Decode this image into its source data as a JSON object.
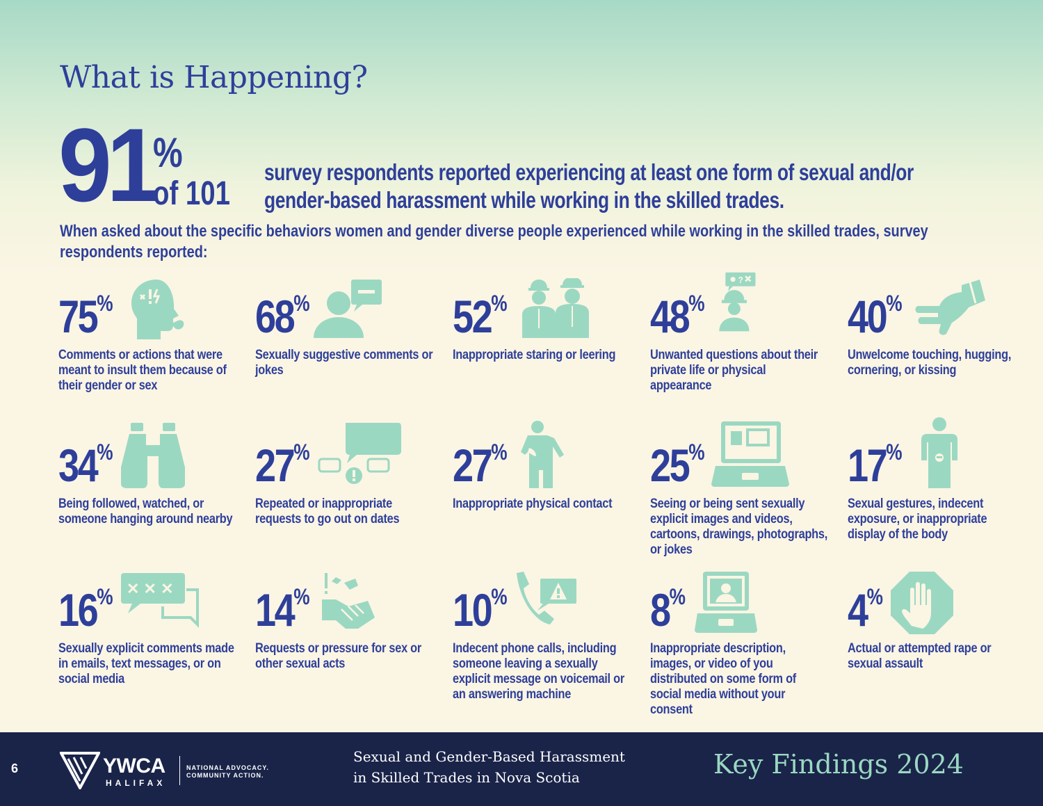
{
  "title": "What is Happening?",
  "headline": {
    "big_value": "91",
    "percent_sign": "%",
    "of_total": "of 101",
    "text": "survey respondents reported experiencing at least one form of sexual and/or gender-based harassment while working in the skilled trades."
  },
  "intro": "When asked about the specific behaviors women and gender diverse people experienced while working in the skilled trades, survey respondents reported:",
  "percent_sign": "%",
  "stats": [
    {
      "value": "75",
      "icon": "angry-head-icon",
      "label": "Comments or actions that were meant to insult them because of their gender or sex"
    },
    {
      "value": "68",
      "icon": "speech-person-icon",
      "label": "Sexually suggestive comments or jokes"
    },
    {
      "value": "52",
      "icon": "workers-icon",
      "label": "Inappropriate staring or leering"
    },
    {
      "value": "48",
      "icon": "worker-question-icon",
      "label": "Unwanted questions about their private life or physical appearance"
    },
    {
      "value": "40",
      "icon": "pointing-hand-icon",
      "label": "Unwelcome touching, hugging, cornering, or kissing"
    },
    {
      "value": "34",
      "icon": "binoculars-icon",
      "label": "Being followed, watched, or someone hanging around nearby"
    },
    {
      "value": "27",
      "icon": "speech-bubbles-icon",
      "label": "Repeated or inappropriate requests to go out on dates"
    },
    {
      "value": "27",
      "icon": "person-touched-icon",
      "label": "Inappropriate physical contact"
    },
    {
      "value": "25",
      "icon": "laptop-images-icon",
      "label": "Seeing or being sent sexually explicit images and videos, cartoons, drawings, photographs, or jokes"
    },
    {
      "value": "17",
      "icon": "standing-person-icon",
      "label": "Sexual gestures, indecent exposure, or inappropriate display of the body"
    },
    {
      "value": "16",
      "icon": "censored-messages-icon",
      "label": "Sexually explicit comments made in emails, text messages, or on social media"
    },
    {
      "value": "14",
      "icon": "handshake-icon",
      "label": "Requests or pressure for sex or other sexual acts"
    },
    {
      "value": "10",
      "icon": "phone-warning-icon",
      "label": "Indecent phone calls, including someone leaving a sexually explicit message on voicemail or an answering machine"
    },
    {
      "value": "8",
      "icon": "laptop-photo-icon",
      "label": "Inappropriate description, images, or video of you distributed on some form of social media without your consent"
    },
    {
      "value": "4",
      "icon": "stop-hand-icon",
      "label": "Actual or attempted rape or sexual assault"
    }
  ],
  "footer": {
    "page_number": "6",
    "logo_name": "YWCA",
    "logo_city": "HALIFAX",
    "logo_tagline_1": "NATIONAL ADVOCACY.",
    "logo_tagline_2": "COMMUNITY ACTION.",
    "report_title_1": "Sexual and Gender-Based Harassment",
    "report_title_2": "in Skilled Trades in Nova Scotia",
    "key_findings": "Key Findings 2024"
  },
  "colors": {
    "primary": "#2e3f9a",
    "accent": "#9bd8c2",
    "footer": "#1a2449",
    "background": "#fbf5e4"
  }
}
